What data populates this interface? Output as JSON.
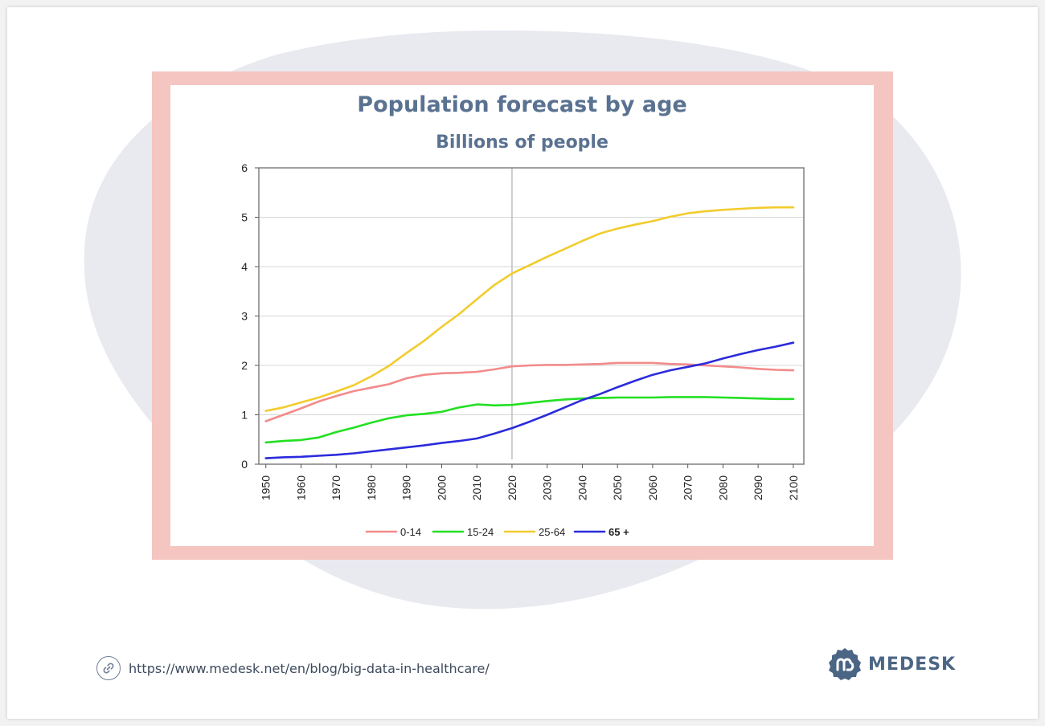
{
  "colors": {
    "frame": "#f4c5c1",
    "blob": "#e8eaf0",
    "title": "#5a7291",
    "brand": "#4b6584",
    "series_0_14": "#f28b8b",
    "series_15_24": "#22e022",
    "series_25_64": "#f2cc2c",
    "series_65": "#2b2bdc"
  },
  "footer": {
    "url": "https://www.medesk.net/en/blog/big-data-in-healthcare/",
    "brand_name": "MEDESK",
    "link_icon": "link-icon",
    "logo_icon": "medesk-logo-icon"
  },
  "chart_data": {
    "type": "line",
    "title": "Population forecast by age",
    "subtitle": "Billions of people",
    "xlabel": "",
    "ylabel": "",
    "xlim": [
      1948,
      2103
    ],
    "ylim": [
      0,
      6
    ],
    "yticks": [
      0,
      1,
      2,
      3,
      4,
      5,
      6
    ],
    "xticks": [
      1950,
      1960,
      1970,
      1980,
      1990,
      2000,
      2010,
      2020,
      2030,
      2040,
      2050,
      2060,
      2070,
      2080,
      2090,
      2100
    ],
    "grid": true,
    "vertical_marker": 2020,
    "legend_position": "bottom",
    "x": [
      1950,
      1955,
      1960,
      1965,
      1970,
      1975,
      1980,
      1985,
      1990,
      1995,
      2000,
      2005,
      2010,
      2015,
      2020,
      2025,
      2030,
      2035,
      2040,
      2045,
      2050,
      2055,
      2060,
      2065,
      2070,
      2075,
      2080,
      2085,
      2090,
      2095,
      2100
    ],
    "series": [
      {
        "name": "0-14",
        "bold": false,
        "values": [
          0.87,
          1.0,
          1.13,
          1.27,
          1.38,
          1.48,
          1.55,
          1.62,
          1.74,
          1.81,
          1.84,
          1.85,
          1.87,
          1.92,
          1.98,
          2.0,
          2.01,
          2.01,
          2.02,
          2.03,
          2.05,
          2.05,
          2.05,
          2.03,
          2.02,
          2.0,
          1.98,
          1.96,
          1.93,
          1.91,
          1.9
        ]
      },
      {
        "name": "15-24",
        "bold": false,
        "values": [
          0.44,
          0.47,
          0.49,
          0.54,
          0.65,
          0.74,
          0.84,
          0.93,
          0.99,
          1.02,
          1.06,
          1.15,
          1.21,
          1.19,
          1.2,
          1.24,
          1.28,
          1.31,
          1.33,
          1.34,
          1.35,
          1.35,
          1.35,
          1.36,
          1.36,
          1.36,
          1.35,
          1.34,
          1.33,
          1.32,
          1.32
        ]
      },
      {
        "name": "25-64",
        "bold": false,
        "values": [
          1.08,
          1.15,
          1.25,
          1.35,
          1.47,
          1.6,
          1.78,
          1.99,
          2.25,
          2.5,
          2.78,
          3.04,
          3.34,
          3.63,
          3.86,
          4.03,
          4.2,
          4.36,
          4.52,
          4.67,
          4.77,
          4.85,
          4.92,
          5.01,
          5.08,
          5.12,
          5.15,
          5.17,
          5.19,
          5.2,
          5.2
        ]
      },
      {
        "name": "65 +",
        "bold": true,
        "values": [
          0.12,
          0.14,
          0.15,
          0.17,
          0.19,
          0.22,
          0.26,
          0.3,
          0.34,
          0.38,
          0.43,
          0.47,
          0.52,
          0.62,
          0.73,
          0.86,
          1.0,
          1.15,
          1.3,
          1.42,
          1.56,
          1.69,
          1.81,
          1.9,
          1.97,
          2.04,
          2.14,
          2.23,
          2.31,
          2.38,
          2.46
        ]
      }
    ]
  }
}
